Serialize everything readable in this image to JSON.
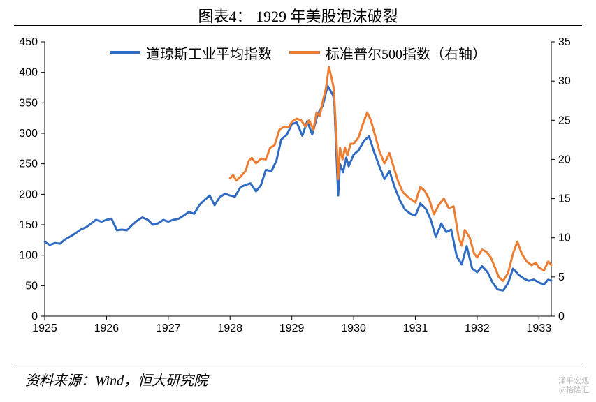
{
  "title": "图表4：  1929 年美股泡沫破裂",
  "source": "资料来源：Wind，恒大研究院",
  "watermark1": "泽平宏观",
  "watermark2": "@格隆汇",
  "chart": {
    "type": "line",
    "background_color": "#ffffff",
    "title_fontsize": 22,
    "axis_fontsize": 16,
    "legend_fontsize": 20,
    "axis_tick_color": "#000000",
    "axis_line_color": "#000000",
    "line_width": 3,
    "x": {
      "min": 1925.0,
      "max": 1933.2,
      "ticks": [
        1925,
        1926,
        1927,
        1928,
        1929,
        1930,
        1931,
        1932,
        1933
      ],
      "labels": [
        "1925",
        "1926",
        "1927",
        "1928",
        "1929",
        "1930",
        "1931",
        "1932",
        "1933"
      ]
    },
    "y_left": {
      "min": 0,
      "max": 450,
      "ticks": [
        0,
        50,
        100,
        150,
        200,
        250,
        300,
        350,
        400,
        450
      ],
      "labels": [
        "0",
        "50",
        "100",
        "150",
        "200",
        "250",
        "300",
        "350",
        "400",
        "450"
      ]
    },
    "y_right": {
      "min": 0,
      "max": 35,
      "ticks": [
        0,
        5,
        10,
        15,
        20,
        25,
        30,
        35
      ],
      "labels": [
        "0",
        "5",
        "10",
        "15",
        "20",
        "25",
        "30",
        "35"
      ]
    },
    "series": [
      {
        "key": "dow",
        "label": "道琼斯工业平均指数",
        "color": "#2f6bc2",
        "axis": "left",
        "points": [
          [
            1925.0,
            122
          ],
          [
            1925.08,
            117
          ],
          [
            1925.17,
            120
          ],
          [
            1925.25,
            119
          ],
          [
            1925.33,
            126
          ],
          [
            1925.42,
            131
          ],
          [
            1925.5,
            136
          ],
          [
            1925.58,
            142
          ],
          [
            1925.67,
            146
          ],
          [
            1925.75,
            152
          ],
          [
            1925.83,
            158
          ],
          [
            1925.92,
            155
          ],
          [
            1926.0,
            158
          ],
          [
            1926.08,
            160
          ],
          [
            1926.17,
            141
          ],
          [
            1926.25,
            142
          ],
          [
            1926.33,
            141
          ],
          [
            1926.42,
            150
          ],
          [
            1926.5,
            157
          ],
          [
            1926.58,
            162
          ],
          [
            1926.67,
            158
          ],
          [
            1926.75,
            150
          ],
          [
            1926.83,
            152
          ],
          [
            1926.92,
            158
          ],
          [
            1927.0,
            155
          ],
          [
            1927.08,
            158
          ],
          [
            1927.17,
            160
          ],
          [
            1927.25,
            165
          ],
          [
            1927.33,
            171
          ],
          [
            1927.42,
            168
          ],
          [
            1927.5,
            182
          ],
          [
            1927.58,
            190
          ],
          [
            1927.67,
            198
          ],
          [
            1927.75,
            182
          ],
          [
            1927.83,
            195
          ],
          [
            1927.92,
            201
          ],
          [
            1928.0,
            198
          ],
          [
            1928.08,
            196
          ],
          [
            1928.17,
            212
          ],
          [
            1928.25,
            215
          ],
          [
            1928.33,
            218
          ],
          [
            1928.42,
            205
          ],
          [
            1928.5,
            215
          ],
          [
            1928.58,
            240
          ],
          [
            1928.67,
            238
          ],
          [
            1928.75,
            255
          ],
          [
            1928.83,
            290
          ],
          [
            1928.92,
            298
          ],
          [
            1929.0,
            315
          ],
          [
            1929.08,
            318
          ],
          [
            1929.17,
            296
          ],
          [
            1929.25,
            320
          ],
          [
            1929.33,
            298
          ],
          [
            1929.42,
            332
          ],
          [
            1929.5,
            345
          ],
          [
            1929.58,
            378
          ],
          [
            1929.67,
            362
          ],
          [
            1929.69,
            345
          ],
          [
            1929.72,
            270
          ],
          [
            1929.75,
            198
          ],
          [
            1929.78,
            250
          ],
          [
            1929.83,
            236
          ],
          [
            1929.88,
            260
          ],
          [
            1929.92,
            246
          ],
          [
            1930.0,
            265
          ],
          [
            1930.08,
            272
          ],
          [
            1930.17,
            288
          ],
          [
            1930.25,
            295
          ],
          [
            1930.33,
            270
          ],
          [
            1930.42,
            245
          ],
          [
            1930.5,
            225
          ],
          [
            1930.58,
            238
          ],
          [
            1930.67,
            210
          ],
          [
            1930.75,
            190
          ],
          [
            1930.83,
            175
          ],
          [
            1930.92,
            168
          ],
          [
            1931.0,
            165
          ],
          [
            1931.08,
            185
          ],
          [
            1931.17,
            176
          ],
          [
            1931.25,
            158
          ],
          [
            1931.33,
            130
          ],
          [
            1931.42,
            152
          ],
          [
            1931.5,
            138
          ],
          [
            1931.58,
            142
          ],
          [
            1931.67,
            98
          ],
          [
            1931.75,
            85
          ],
          [
            1931.83,
            115
          ],
          [
            1931.92,
            78
          ],
          [
            1932.0,
            72
          ],
          [
            1932.08,
            82
          ],
          [
            1932.17,
            72
          ],
          [
            1932.25,
            55
          ],
          [
            1932.33,
            44
          ],
          [
            1932.42,
            42
          ],
          [
            1932.5,
            54
          ],
          [
            1932.58,
            78
          ],
          [
            1932.67,
            68
          ],
          [
            1932.75,
            62
          ],
          [
            1932.83,
            58
          ],
          [
            1932.92,
            60
          ],
          [
            1933.0,
            55
          ],
          [
            1933.08,
            52
          ],
          [
            1933.15,
            60
          ],
          [
            1933.2,
            58
          ]
        ]
      },
      {
        "key": "sp500",
        "label": "标准普尔500指数（右轴）",
        "color": "#ed7d31",
        "axis": "right",
        "points": [
          [
            1928.0,
            17.6
          ],
          [
            1928.05,
            18.0
          ],
          [
            1928.1,
            17.3
          ],
          [
            1928.17,
            17.8
          ],
          [
            1928.25,
            18.5
          ],
          [
            1928.3,
            19.8
          ],
          [
            1928.35,
            20.2
          ],
          [
            1928.42,
            19.5
          ],
          [
            1928.5,
            20.1
          ],
          [
            1928.58,
            20.0
          ],
          [
            1928.65,
            21.5
          ],
          [
            1928.72,
            21.8
          ],
          [
            1928.8,
            23.8
          ],
          [
            1928.88,
            24.2
          ],
          [
            1928.95,
            24.1
          ],
          [
            1929.0,
            24.8
          ],
          [
            1929.08,
            25.2
          ],
          [
            1929.15,
            25.0
          ],
          [
            1929.22,
            24.2
          ],
          [
            1929.28,
            25.0
          ],
          [
            1929.35,
            23.8
          ],
          [
            1929.4,
            26.0
          ],
          [
            1929.45,
            25.5
          ],
          [
            1929.5,
            27.4
          ],
          [
            1929.55,
            29.0
          ],
          [
            1929.6,
            31.8
          ],
          [
            1929.65,
            30.2
          ],
          [
            1929.68,
            29.0
          ],
          [
            1929.72,
            23.0
          ],
          [
            1929.75,
            17.5
          ],
          [
            1929.78,
            21.5
          ],
          [
            1929.82,
            20.0
          ],
          [
            1929.86,
            21.5
          ],
          [
            1929.9,
            20.5
          ],
          [
            1929.95,
            22.0
          ],
          [
            1930.0,
            22.0
          ],
          [
            1930.08,
            22.8
          ],
          [
            1930.15,
            24.5
          ],
          [
            1930.22,
            26.0
          ],
          [
            1930.28,
            25.0
          ],
          [
            1930.35,
            23.0
          ],
          [
            1930.42,
            21.0
          ],
          [
            1930.5,
            19.5
          ],
          [
            1930.58,
            20.8
          ],
          [
            1930.65,
            19.0
          ],
          [
            1930.72,
            17.2
          ],
          [
            1930.8,
            15.8
          ],
          [
            1930.88,
            15.2
          ],
          [
            1930.95,
            14.8
          ],
          [
            1931.0,
            14.5
          ],
          [
            1931.08,
            16.5
          ],
          [
            1931.15,
            16.0
          ],
          [
            1931.22,
            15.0
          ],
          [
            1931.3,
            13.0
          ],
          [
            1931.38,
            14.2
          ],
          [
            1931.46,
            15.0
          ],
          [
            1931.54,
            13.8
          ],
          [
            1931.62,
            14.0
          ],
          [
            1931.7,
            10.0
          ],
          [
            1931.75,
            9.0
          ],
          [
            1931.8,
            11.0
          ],
          [
            1931.88,
            10.0
          ],
          [
            1931.95,
            8.0
          ],
          [
            1932.0,
            7.5
          ],
          [
            1932.08,
            8.5
          ],
          [
            1932.15,
            8.2
          ],
          [
            1932.22,
            7.5
          ],
          [
            1932.3,
            6.0
          ],
          [
            1932.35,
            5.0
          ],
          [
            1932.42,
            4.5
          ],
          [
            1932.5,
            5.5
          ],
          [
            1932.58,
            8.0
          ],
          [
            1932.65,
            9.5
          ],
          [
            1932.72,
            8.0
          ],
          [
            1932.8,
            7.0
          ],
          [
            1932.88,
            6.5
          ],
          [
            1932.95,
            6.8
          ],
          [
            1933.0,
            6.2
          ],
          [
            1933.08,
            5.8
          ],
          [
            1933.15,
            7.0
          ],
          [
            1933.2,
            6.5
          ]
        ]
      }
    ]
  }
}
